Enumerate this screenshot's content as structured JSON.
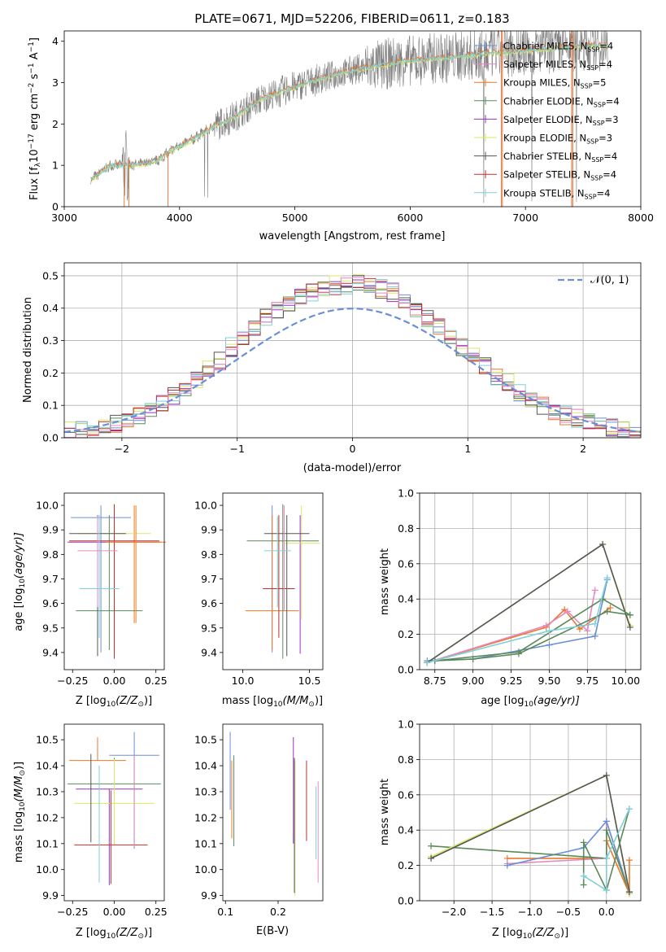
{
  "chart_data": [
    {
      "id": "spectrum",
      "type": "line",
      "title": "PLATE=0671, MJD=52206, FIBERID=0611, z=0.183",
      "xlabel": "wavelength [Angstrom, rest frame]",
      "ylabel": "Flux [f$_\\lambda$10$^{-17}$ erg cm$^{-2}$ s$^{-1}$ A$^{-1}$]",
      "ylabel_parts": {
        "a": "Flux [f",
        "a_sub": "λ",
        "b": "10",
        "b_sup": "−17",
        "c": " erg cm",
        "c_sup": "−2",
        "d": " s",
        "d_sup": "−1",
        "e": " A",
        "e_sup": "−1",
        "f": "]"
      },
      "xlim": [
        3000,
        8000
      ],
      "ylim": [
        0,
        4.25
      ],
      "xticks": [
        "3000",
        "4000",
        "5000",
        "6000",
        "7000",
        "8000"
      ],
      "xtick_values": [
        3000,
        4000,
        5000,
        6000,
        7000,
        8000
      ],
      "yticks": [
        "0",
        "1",
        "2",
        "3",
        "4"
      ],
      "ytick_values": [
        0,
        1,
        2,
        3,
        4
      ],
      "legend_position": "right",
      "legend": [
        {
          "prefix": "Chabrier MILES, N",
          "sub": "SSP",
          "suffix": "=4"
        },
        {
          "prefix": "Salpeter MILES, N",
          "sub": "SSP",
          "suffix": "=4"
        },
        {
          "prefix": "Kroupa MILES, N",
          "sub": "SSP",
          "suffix": "=5"
        },
        {
          "prefix": "Chabrier ELODIE, N",
          "sub": "SSP",
          "suffix": "=4"
        },
        {
          "prefix": "Salpeter ELODIE, N",
          "sub": "SSP",
          "suffix": "=3"
        },
        {
          "prefix": "Kroupa ELODIE, N",
          "sub": "SSP",
          "suffix": "=3"
        },
        {
          "prefix": "Chabrier STELIB, N",
          "sub": "SSP",
          "suffix": "=4"
        },
        {
          "prefix": "Salpeter STELIB, N",
          "sub": "SSP",
          "suffix": "=4"
        },
        {
          "prefix": "Kroupa STELIB, N",
          "sub": "SSP",
          "suffix": "=4"
        }
      ],
      "model_points": {
        "x": [
          3230,
          3400,
          3600,
          3800,
          3950,
          4100,
          4300,
          4500,
          4700,
          4900,
          5100,
          5300,
          5500,
          5700,
          5900,
          6100,
          6300,
          6500,
          6700,
          6900,
          7100,
          7300,
          7500
        ],
        "y": [
          0.65,
          1.0,
          1.0,
          1.1,
          1.4,
          1.6,
          1.95,
          2.2,
          2.6,
          2.8,
          3.0,
          3.15,
          3.3,
          3.4,
          3.5,
          3.55,
          3.6,
          3.65,
          3.72,
          3.75,
          3.8,
          3.85,
          3.9
        ]
      },
      "data_x_range": [
        3230,
        7720
      ]
    },
    {
      "id": "residuals",
      "type": "step",
      "xlabel": "(data-model)/error",
      "ylabel": "Normed distribution",
      "xlim": [
        -2.5,
        2.5
      ],
      "ylim": [
        0,
        0.54
      ],
      "xticks": [
        "−2",
        "−1",
        "0",
        "1",
        "2"
      ],
      "xtick_values": [
        -2,
        -1,
        0,
        1,
        2
      ],
      "yticks": [
        "0.0",
        "0.1",
        "0.2",
        "0.3",
        "0.4",
        "0.5"
      ],
      "ytick_values": [
        0,
        0.1,
        0.2,
        0.3,
        0.4,
        0.5
      ],
      "grid": true,
      "legend": [
        "$\\mathcal{N}(0,1)$"
      ],
      "legend_text": "𝒩(0, 1)",
      "legend_position": "top-right",
      "bin_width": 0.1,
      "hist_base": [
        0.02,
        0.02,
        0.02,
        0.03,
        0.04,
        0.05,
        0.07,
        0.09,
        0.11,
        0.13,
        0.15,
        0.18,
        0.21,
        0.24,
        0.28,
        0.31,
        0.34,
        0.37,
        0.4,
        0.42,
        0.44,
        0.45,
        0.46,
        0.47,
        0.47,
        0.48,
        0.47,
        0.46,
        0.45,
        0.43,
        0.4,
        0.37,
        0.34,
        0.31,
        0.28,
        0.25,
        0.22,
        0.19,
        0.17,
        0.14,
        0.12,
        0.1,
        0.08,
        0.07,
        0.06,
        0.05,
        0.04,
        0.03,
        0.02,
        0.02
      ]
    },
    {
      "id": "age-vs-z",
      "type": "errorbar",
      "xlabel": "Z [log$_{10}$($Z/Z_\\odot$)]",
      "xlabel_parts": {
        "a": "Z [log",
        "sub": "10",
        "b": "(Z/Z",
        "sub2": "⊙",
        "c": ")]"
      },
      "ylabel": "age  [log$_{10}$($age/yr$)]",
      "ylabel_parts": {
        "a": "age  [log",
        "sub": "10",
        "b": "(age/yr)]"
      },
      "xlim": [
        -0.3,
        0.3
      ],
      "ylim": [
        9.33,
        10.05
      ],
      "xticks": [
        "−0.25",
        "0.00",
        "0.25"
      ],
      "xtick_values": [
        -0.25,
        0,
        0.25
      ],
      "yticks": [
        "9.4",
        "9.5",
        "9.6",
        "9.7",
        "9.8",
        "9.9",
        "10.0"
      ],
      "ytick_values": [
        9.4,
        9.5,
        9.6,
        9.7,
        9.8,
        9.9,
        10.0
      ],
      "points": [
        {
          "x": -0.08,
          "y": 9.95,
          "xerr": 0.18,
          "yerr": [
            0.55,
            0.05
          ]
        },
        {
          "x": 0.12,
          "y": 9.52,
          "xerr": 0.0,
          "yerr": [
            0.0,
            0.48
          ]
        },
        {
          "x": -0.03,
          "y": 9.57,
          "xerr": 0.2,
          "yerr": [
            0.16,
            0.39
          ]
        },
        {
          "x": 0.0,
          "y": 9.85,
          "xerr": 0.28,
          "yerr": [
            0.45,
            0.1
          ]
        },
        {
          "x": 0.0,
          "y": 9.885,
          "xerr": 0.22,
          "yerr": [
            0.49,
            0.075
          ]
        },
        {
          "x": -0.1,
          "y": 9.885,
          "xerr": 0.17,
          "yerr": [
            0.5,
            0.075
          ]
        },
        {
          "x": 0.0,
          "y": 9.855,
          "xerr": 0.27,
          "yerr": [
            0.48,
            0.15
          ]
        },
        {
          "x": -0.09,
          "y": 9.66,
          "xerr": 0.12,
          "yerr": [
            0.2,
            0.3
          ]
        },
        {
          "x": -0.1,
          "y": 9.815,
          "xerr": 0.12,
          "yerr": [
            0.23,
            0.14
          ]
        },
        {
          "x": 0.13,
          "y": 9.85,
          "xerr": 0.18,
          "yerr": [
            0.33,
            0.15
          ]
        }
      ]
    },
    {
      "id": "age-vs-mass",
      "type": "errorbar",
      "xlabel": "mass [log$_{10}$($M/M_\\odot$)]",
      "xlabel_parts": {
        "a": "mass [log",
        "sub": "10",
        "b": "(M/M",
        "sub2": "⊙",
        "c": ")]"
      },
      "xlim": [
        9.85,
        10.6
      ],
      "ylim": [
        9.33,
        10.05
      ],
      "xticks": [
        "10.0",
        "10.5"
      ],
      "xtick_values": [
        10.0,
        10.5
      ],
      "yticks": [
        "9.4",
        "9.5",
        "9.6",
        "9.7",
        "9.8",
        "9.9",
        "10.0"
      ],
      "ytick_values": [
        9.4,
        9.5,
        9.6,
        9.7,
        9.8,
        9.9,
        10.0
      ],
      "points": [
        {
          "x": 10.22,
          "y": 9.9,
          "xerr": 0.0,
          "yerr": [
            0.5,
            0.1
          ]
        },
        {
          "x": 10.22,
          "y": 9.57,
          "xerr": 0.2,
          "yerr": [
            0.16,
            0.39
          ]
        },
        {
          "x": 10.3,
          "y": 9.855,
          "xerr": 0.27,
          "yerr": [
            0.48,
            0.15
          ]
        },
        {
          "x": 10.43,
          "y": 9.885,
          "xerr": 0.0,
          "yerr": [
            0.49,
            0.075
          ]
        },
        {
          "x": 10.44,
          "y": 9.845,
          "xerr": 0.14,
          "yerr": [
            0.31,
            0.155
          ]
        },
        {
          "x": 10.33,
          "y": 9.885,
          "xerr": 0.17,
          "yerr": [
            0.5,
            0.075
          ]
        },
        {
          "x": 10.27,
          "y": 9.66,
          "xerr": 0.12,
          "yerr": [
            0.2,
            0.3
          ]
        },
        {
          "x": 10.26,
          "y": 9.815,
          "xerr": 0.1,
          "yerr": [
            0.23,
            0.14
          ]
        },
        {
          "x": 10.31,
          "y": 9.9,
          "xerr": 0.0,
          "yerr": [
            0.33,
            0.1
          ]
        }
      ]
    },
    {
      "id": "mass-weight-vs-age",
      "type": "line",
      "xlabel": "age  [log$_{10}$($age/yr$)]",
      "xlabel_parts": {
        "a": "age  [log",
        "sub": "10",
        "b": "(age/yr)]"
      },
      "ylabel": "mass weight",
      "xlim": [
        8.65,
        10.1
      ],
      "ylim": [
        0,
        1.0
      ],
      "xticks": [
        "8.75",
        "9.00",
        "9.25",
        "9.50",
        "9.75",
        "10.00"
      ],
      "xtick_values": [
        8.75,
        9.0,
        9.25,
        9.5,
        9.75,
        10.0
      ],
      "yticks": [
        "0.0",
        "0.2",
        "0.4",
        "0.6",
        "0.8",
        "1.0"
      ],
      "ytick_values": [
        0,
        0.2,
        0.4,
        0.6,
        0.8,
        1.0
      ],
      "grid": true,
      "series": [
        {
          "x": [
            8.7,
            9.48,
            9.6,
            9.7,
            9.9
          ],
          "y": [
            0.04,
            0.24,
            0.34,
            0.23,
            0.35
          ]
        },
        {
          "x": [
            8.7,
            9.48,
            9.62,
            9.75,
            9.8
          ],
          "y": [
            0.04,
            0.25,
            0.33,
            0.22,
            0.45
          ]
        },
        {
          "x": [
            8.7,
            9.0,
            9.5,
            9.8,
            9.88
          ],
          "y": [
            0.05,
            0.06,
            0.14,
            0.19,
            0.51
          ]
        },
        {
          "x": [
            8.75,
            9.0,
            9.3,
            9.88,
            10.03
          ],
          "y": [
            0.05,
            0.06,
            0.09,
            0.33,
            0.31
          ]
        },
        {
          "x": [
            8.7,
            9.85,
            10.03
          ],
          "y": [
            0.04,
            0.71,
            0.25
          ]
        },
        {
          "x": [
            8.7,
            9.85,
            10.03
          ],
          "y": [
            0.04,
            0.71,
            0.24
          ]
        },
        {
          "x": [
            8.75,
            9.3,
            9.85,
            10.03
          ],
          "y": [
            0.05,
            0.1,
            0.4,
            0.31
          ]
        },
        {
          "x": [
            8.7,
            9.5,
            9.8,
            9.88
          ],
          "y": [
            0.04,
            0.22,
            0.26,
            0.52
          ]
        }
      ]
    },
    {
      "id": "mass-vs-z",
      "type": "errorbar",
      "xlabel": "Z [log$_{10}$($Z/Z_\\odot$)]",
      "xlabel_parts": {
        "a": "Z [log",
        "sub": "10",
        "b": "(Z/Z",
        "sub2": "⊙",
        "c": ")]"
      },
      "ylabel": "mass [log$_{10}$($M/M_\\odot$)]",
      "ylabel_parts": {
        "a": "mass [log",
        "sub": "10",
        "b": "(M/M",
        "sub2": "⊙",
        "c": ")]"
      },
      "xlim": [
        -0.3,
        0.3
      ],
      "ylim": [
        9.88,
        10.56
      ],
      "xticks": [
        "−0.25",
        "0.00",
        "0.25"
      ],
      "xtick_values": [
        -0.25,
        0,
        0.25
      ],
      "yticks": [
        "9.9",
        "10.0",
        "10.1",
        "10.2",
        "10.3",
        "10.4",
        "10.5"
      ],
      "ytick_values": [
        9.9,
        10.0,
        10.1,
        10.2,
        10.3,
        10.4,
        10.5
      ],
      "points": [
        {
          "x": 0.12,
          "y": 10.44,
          "xerr": 0.15,
          "yerr": [
            0.36,
            0.09
          ]
        },
        {
          "x": -0.1,
          "y": 10.42,
          "xerr": 0.17,
          "yerr": [
            0.0,
            0.09
          ]
        },
        {
          "x": 0.0,
          "y": 10.33,
          "xerr": 0.28,
          "yerr": [
            0.23,
            0.1
          ]
        },
        {
          "x": -0.03,
          "y": 10.31,
          "xerr": 0.2,
          "yerr": [
            0.37,
            0.0
          ]
        },
        {
          "x": 0.0,
          "y": 10.255,
          "xerr": 0.24,
          "yerr": [
            0.16,
            0.17
          ]
        },
        {
          "x": -0.14,
          "y": 10.225,
          "xerr": 0.0,
          "yerr": [
            0.12,
            0.22
          ]
        },
        {
          "x": -0.02,
          "y": 10.095,
          "xerr": 0.22,
          "yerr": [
            0.15,
            0.21
          ]
        },
        {
          "x": -0.09,
          "y": 10.3,
          "xerr": 0.0,
          "yerr": [
            0.35,
            0.1
          ]
        },
        {
          "x": 0.12,
          "y": 10.27,
          "xerr": 0.0,
          "yerr": [
            0.18,
            0.17
          ]
        }
      ]
    },
    {
      "id": "mass-vs-ebv",
      "type": "errorbar",
      "xlabel": "E(B-V)",
      "xlim": [
        0.095,
        0.285
      ],
      "ylim": [
        9.88,
        10.56
      ],
      "xticks": [
        "0.1",
        "0.2"
      ],
      "xtick_values": [
        0.1,
        0.2
      ],
      "yticks": [
        "9.9",
        "10.0",
        "10.1",
        "10.2",
        "10.3",
        "10.4",
        "10.5"
      ],
      "ytick_values": [
        9.9,
        10.0,
        10.1,
        10.2,
        10.3,
        10.4,
        10.5
      ],
      "points": [
        {
          "x": 0.109,
          "y": 10.38,
          "xerr": 0.0,
          "yerr": [
            0.15,
            0.15
          ]
        },
        {
          "x": 0.112,
          "y": 10.26,
          "xerr": 0.0,
          "yerr": [
            0.14,
            0.16
          ]
        },
        {
          "x": 0.116,
          "y": 10.27,
          "xerr": 0.0,
          "yerr": [
            0.18,
            0.17
          ]
        },
        {
          "x": 0.229,
          "y": 10.3,
          "xerr": 0.0,
          "yerr": [
            0.2,
            0.21
          ]
        },
        {
          "x": 0.232,
          "y": 10.25,
          "xerr": 0.0,
          "yerr": [
            0.35,
            0.17
          ]
        },
        {
          "x": 0.231,
          "y": 10.2,
          "xerr": 0.0,
          "yerr": [
            0.29,
            0.23
          ]
        },
        {
          "x": 0.254,
          "y": 10.27,
          "xerr": 0.0,
          "yerr": [
            0.16,
            0.15
          ]
        },
        {
          "x": 0.272,
          "y": 10.2,
          "xerr": 0.0,
          "yerr": [
            0.16,
            0.12
          ]
        },
        {
          "x": 0.276,
          "y": 10.14,
          "xerr": 0.0,
          "yerr": [
            0.19,
            0.2
          ]
        }
      ]
    },
    {
      "id": "mass-weight-vs-z",
      "type": "line",
      "xlabel": "Z [log$_{10}$($Z/Z_\\odot$)]",
      "xlabel_parts": {
        "a": "Z [log",
        "sub": "10",
        "b": "(Z/Z",
        "sub2": "⊙",
        "c": ")]"
      },
      "ylabel": "mass weight",
      "xlim": [
        -2.45,
        0.45
      ],
      "ylim": [
        0,
        1.0
      ],
      "xticks": [
        "−2.0",
        "−1.5",
        "−1.0",
        "−0.5",
        "0.0"
      ],
      "xtick_values": [
        -2.0,
        -1.5,
        -1.0,
        -0.5,
        0.0
      ],
      "yticks": [
        "0.0",
        "0.2",
        "0.4",
        "0.6",
        "0.8",
        "1.0"
      ],
      "ytick_values": [
        0,
        0.2,
        0.4,
        0.6,
        0.8,
        1.0
      ],
      "grid": true,
      "series": [
        {
          "x": [
            -1.3,
            0.0,
            0.0,
            0.3,
            0.3
          ],
          "y": [
            0.24,
            0.24,
            0.34,
            0.04,
            0.23
          ]
        },
        {
          "x": [
            -1.3,
            0.0,
            0.0,
            0.3
          ],
          "y": [
            0.21,
            0.24,
            0.45,
            0.04
          ]
        },
        {
          "x": [
            -1.3,
            -0.3,
            0.0,
            0.3
          ],
          "y": [
            0.2,
            0.3,
            0.45,
            0.05
          ]
        },
        {
          "x": [
            -2.3,
            0.0,
            0.0,
            0.3
          ],
          "y": [
            0.31,
            0.24,
            0.4,
            0.05
          ]
        },
        {
          "x": [
            -2.3,
            0.0,
            0.3
          ],
          "y": [
            0.25,
            0.71,
            0.04
          ]
        },
        {
          "x": [
            -2.3,
            0.0,
            0.3
          ],
          "y": [
            0.24,
            0.71,
            0.05
          ]
        },
        {
          "x": [
            -0.3,
            -0.3,
            0.0,
            0.3
          ],
          "y": [
            0.09,
            0.33,
            0.06,
            0.52
          ]
        },
        {
          "x": [
            -0.3,
            0.0,
            0.0,
            0.3
          ],
          "y": [
            0.14,
            0.06,
            0.24,
            0.52
          ]
        }
      ]
    }
  ],
  "colors": {
    "palette": [
      "#6a8fd8",
      "#e8792a",
      "#5a8a5a",
      "#9b30c8",
      "#d8e86a",
      "#555555",
      "#c0302a",
      "#7fd0d8",
      "#e58ac0",
      "#ff7f0e"
    ],
    "spectrum_data": "#808080",
    "model_blue": "#7fd0d8",
    "model_orange": "#e07a40",
    "gaussian": "#6a8fd8",
    "grid": "#b0b0b0"
  }
}
